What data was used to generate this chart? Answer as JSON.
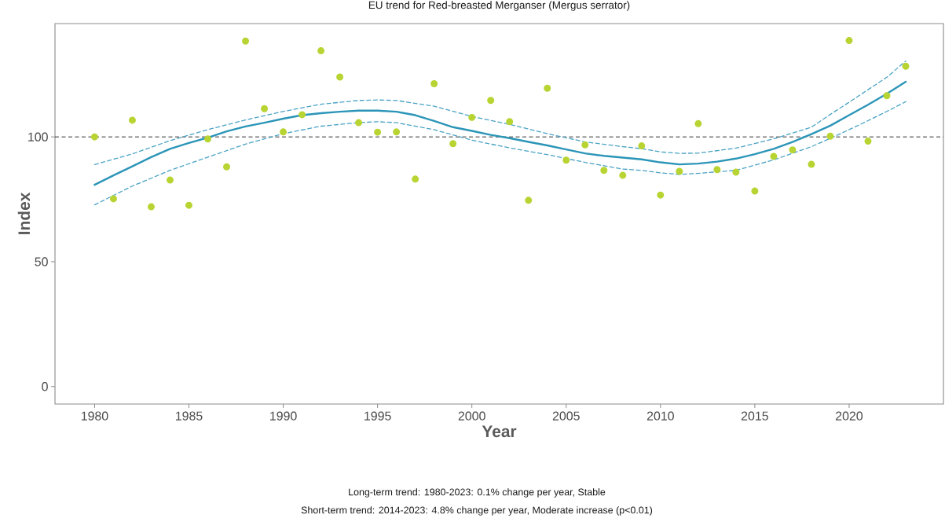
{
  "chart_data": {
    "type": "scatter",
    "title": "EU trend for Red-breasted Merganser (Mergus serrator)",
    "xlabel": "Year",
    "ylabel": "Index",
    "annotations": [
      "Long-term trend: 1980-2023: 0.1% change per year, Stable",
      "Short-term trend: 2014-2023: 4.8% change per year, Moderate increase (p<0.01)"
    ],
    "xlim": [
      1977.9,
      2025
    ],
    "ylim": [
      -7,
      145.4
    ],
    "xticks": [
      1980,
      1985,
      1990,
      1995,
      2000,
      2005,
      2010,
      2015,
      2020
    ],
    "yticks": [
      0,
      50,
      100
    ],
    "ref_lines": [
      {
        "axis": "y",
        "value": 100,
        "color": "#333333",
        "line_style": "dashed"
      }
    ],
    "series": [
      {
        "color": "#b8d433",
        "marker": "circle",
        "x": [
          1980,
          1981,
          1982,
          1983,
          1984,
          1985,
          1986,
          1987,
          1988,
          1989,
          1990,
          1991,
          1992,
          1993,
          1994,
          1995,
          1996,
          1997,
          1998,
          1999,
          2000,
          2001,
          2002,
          2003,
          2004,
          2005,
          2006,
          2007,
          2008,
          2009,
          2010,
          2011,
          2012,
          2013,
          2014,
          2015,
          2016,
          2017,
          2018,
          2019,
          2020,
          2021,
          2022,
          2023
        ],
        "values": [
          100,
          75.2,
          106.7,
          72,
          82.7,
          72.6,
          99.2,
          88,
          138.4,
          111.3,
          102,
          108.9,
          134.5,
          124,
          105.7,
          101.9,
          102,
          83.1,
          121.3,
          97.3,
          107.8,
          114.6,
          106.1,
          74.6,
          119.5,
          90.7,
          96.8,
          86.6,
          84.6,
          96.4,
          76.7,
          86.2,
          105.3,
          86.9,
          85.9,
          78.3,
          92.2,
          94.8,
          89,
          100.3,
          138.6,
          98.3,
          116.5,
          128.3
        ]
      },
      {
        "type": "line",
        "color": "#2b95b8",
        "marker": "none",
        "line_style": "solid",
        "x": [
          1980,
          1981,
          1982,
          1983,
          1984,
          1985,
          1986,
          1987,
          1988,
          1989,
          1990,
          1991,
          1992,
          1993,
          1994,
          1995,
          1996,
          1997,
          1998,
          1999,
          2000,
          2001,
          2002,
          2003,
          2004,
          2005,
          2006,
          2007,
          2008,
          2009,
          2010,
          2011,
          2012,
          2013,
          2014,
          2015,
          2016,
          2017,
          2018,
          2019,
          2020,
          2021,
          2022,
          2023
        ],
        "values": [
          80.8,
          84.6,
          88.2,
          91.9,
          95.2,
          97.6,
          99.7,
          102.2,
          104.2,
          105.7,
          107.3,
          108.7,
          109.5,
          110.1,
          110.5,
          110.5,
          110.1,
          108.7,
          106.4,
          103.9,
          102.4,
          100.8,
          99.5,
          98,
          96.6,
          95,
          93.4,
          92.4,
          91.7,
          91,
          89.8,
          89,
          89.3,
          90.1,
          91.3,
          93.1,
          95.2,
          98,
          101.1,
          104.5,
          108.7,
          112.9,
          117.3,
          122.1
        ]
      },
      {
        "type": "line",
        "color": "#4aa3c4",
        "marker": "none",
        "line_style": "dashed",
        "x": [
          1980,
          1982,
          1984,
          1986,
          1988,
          1990,
          1992,
          1994,
          1995,
          1996,
          1998,
          2000,
          2002,
          2004,
          2006,
          2008,
          2009,
          2010,
          2011,
          2012,
          2014,
          2016,
          2018,
          2019,
          2020,
          2021,
          2022,
          2023
        ],
        "values": [
          88.9,
          93.2,
          98.5,
          102.9,
          106.8,
          110.2,
          113.1,
          114.6,
          114.8,
          114.6,
          112.3,
          108.2,
          105,
          101.3,
          98,
          96.1,
          95.3,
          94,
          93.4,
          93.5,
          95.5,
          99.2,
          103.9,
          109,
          113.9,
          118.9,
          123.9,
          130.4
        ]
      },
      {
        "type": "line",
        "color": "#4aa3c4",
        "marker": "none",
        "line_style": "dashed",
        "x": [
          1980,
          1982,
          1984,
          1986,
          1988,
          1990,
          1992,
          1994,
          1995,
          1996,
          1998,
          2000,
          2002,
          2004,
          2006,
          2008,
          2009,
          2010,
          2011,
          2012,
          2014,
          2016,
          2018,
          2019,
          2020,
          2021,
          2022,
          2023
        ],
        "values": [
          72.8,
          80.3,
          86.6,
          91.9,
          97.1,
          101.3,
          104.3,
          105.7,
          106.1,
          105.7,
          102.9,
          98.7,
          95.6,
          92.9,
          89.8,
          87.1,
          86.6,
          85.6,
          85,
          85.4,
          86.6,
          90.8,
          96.1,
          99.4,
          102.9,
          106.5,
          110.2,
          114.1
        ]
      }
    ]
  }
}
